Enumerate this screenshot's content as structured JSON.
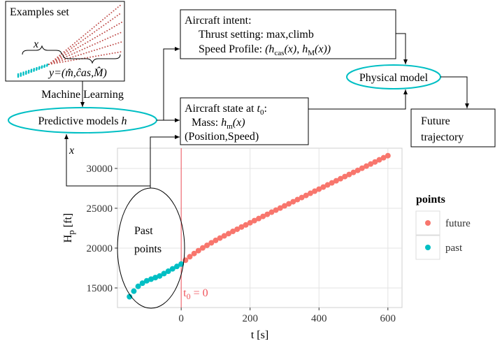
{
  "diagram": {
    "examples": {
      "title": "Examples set",
      "x_label": "x",
      "y_label": "y=(m̂,ĉas,M̂)"
    },
    "ml_label": "Machine Learning",
    "predictive": [
      "Predictive models ",
      "h"
    ],
    "x_input": "x",
    "intent": {
      "title": "Aircraft intent:",
      "thrust": "Thrust setting: max,climb",
      "speed": [
        "Speed Profile: ",
        "(h",
        "cas",
        "(x), h",
        "M",
        "(x))"
      ]
    },
    "state": {
      "title": [
        "Aircraft state at ",
        "t",
        "0",
        ":"
      ],
      "mass": [
        "Mass: ",
        "h",
        "m",
        "(x)"
      ],
      "position": "(Position,Speed)"
    },
    "physical": "Physical model",
    "future": [
      "Future",
      "trajectory"
    ],
    "past": [
      "Past",
      "points"
    ]
  },
  "chart_data": {
    "type": "scatter",
    "x_label": "t [s]",
    "y_label": [
      "H",
      "p",
      " [ft]"
    ],
    "xlim": [
      -185,
      641
    ],
    "ylim": [
      12540,
      32540
    ],
    "xticks": [
      0,
      200,
      400,
      600
    ],
    "yticks": [
      15000,
      20000,
      25000,
      30000
    ],
    "grid": true,
    "legend_title": "points",
    "legend_position": "right",
    "annotation": {
      "x": 0,
      "text": [
        "t",
        "0",
        " = 0"
      ],
      "color": "#f0525a"
    },
    "series": [
      {
        "name": "future",
        "color": "#F8766D",
        "x": [
          12.5,
          25,
          37.5,
          50,
          62.5,
          75,
          87.5,
          100,
          112.5,
          125,
          137.5,
          150,
          162.5,
          175,
          187.5,
          200,
          212.5,
          225,
          237.5,
          250,
          262.5,
          275,
          287.5,
          300,
          312.5,
          325,
          337.5,
          350,
          362.5,
          375,
          387.5,
          400,
          412.5,
          425,
          437.5,
          450,
          462.5,
          475,
          487.5,
          500,
          512.5,
          525,
          537.5,
          550,
          562.5,
          575,
          587.5,
          600
        ],
        "values": [
          18480,
          18920,
          19320,
          19680,
          20030,
          20350,
          20660,
          20970,
          21260,
          21540,
          21820,
          22100,
          22370,
          22650,
          22910,
          23180,
          23450,
          23710,
          23980,
          24240,
          24510,
          24770,
          25030,
          25300,
          25560,
          25820,
          26090,
          26350,
          26610,
          26880,
          27140,
          27400,
          27660,
          27930,
          28190,
          28450,
          28710,
          28980,
          29240,
          29500,
          29760,
          30030,
          30290,
          30550,
          30810,
          31080,
          31340,
          31600
        ]
      },
      {
        "name": "past",
        "color": "#00BFC4",
        "x": [
          -150,
          -137.5,
          -125,
          -112.5,
          -100,
          -87.5,
          -75,
          -62.5,
          -50,
          -37.5,
          -25,
          -12.5,
          0
        ],
        "values": [
          13900,
          14600,
          15200,
          15600,
          15900,
          16100,
          16300,
          16500,
          16800,
          17100,
          17400,
          17700,
          18000
        ]
      }
    ]
  }
}
